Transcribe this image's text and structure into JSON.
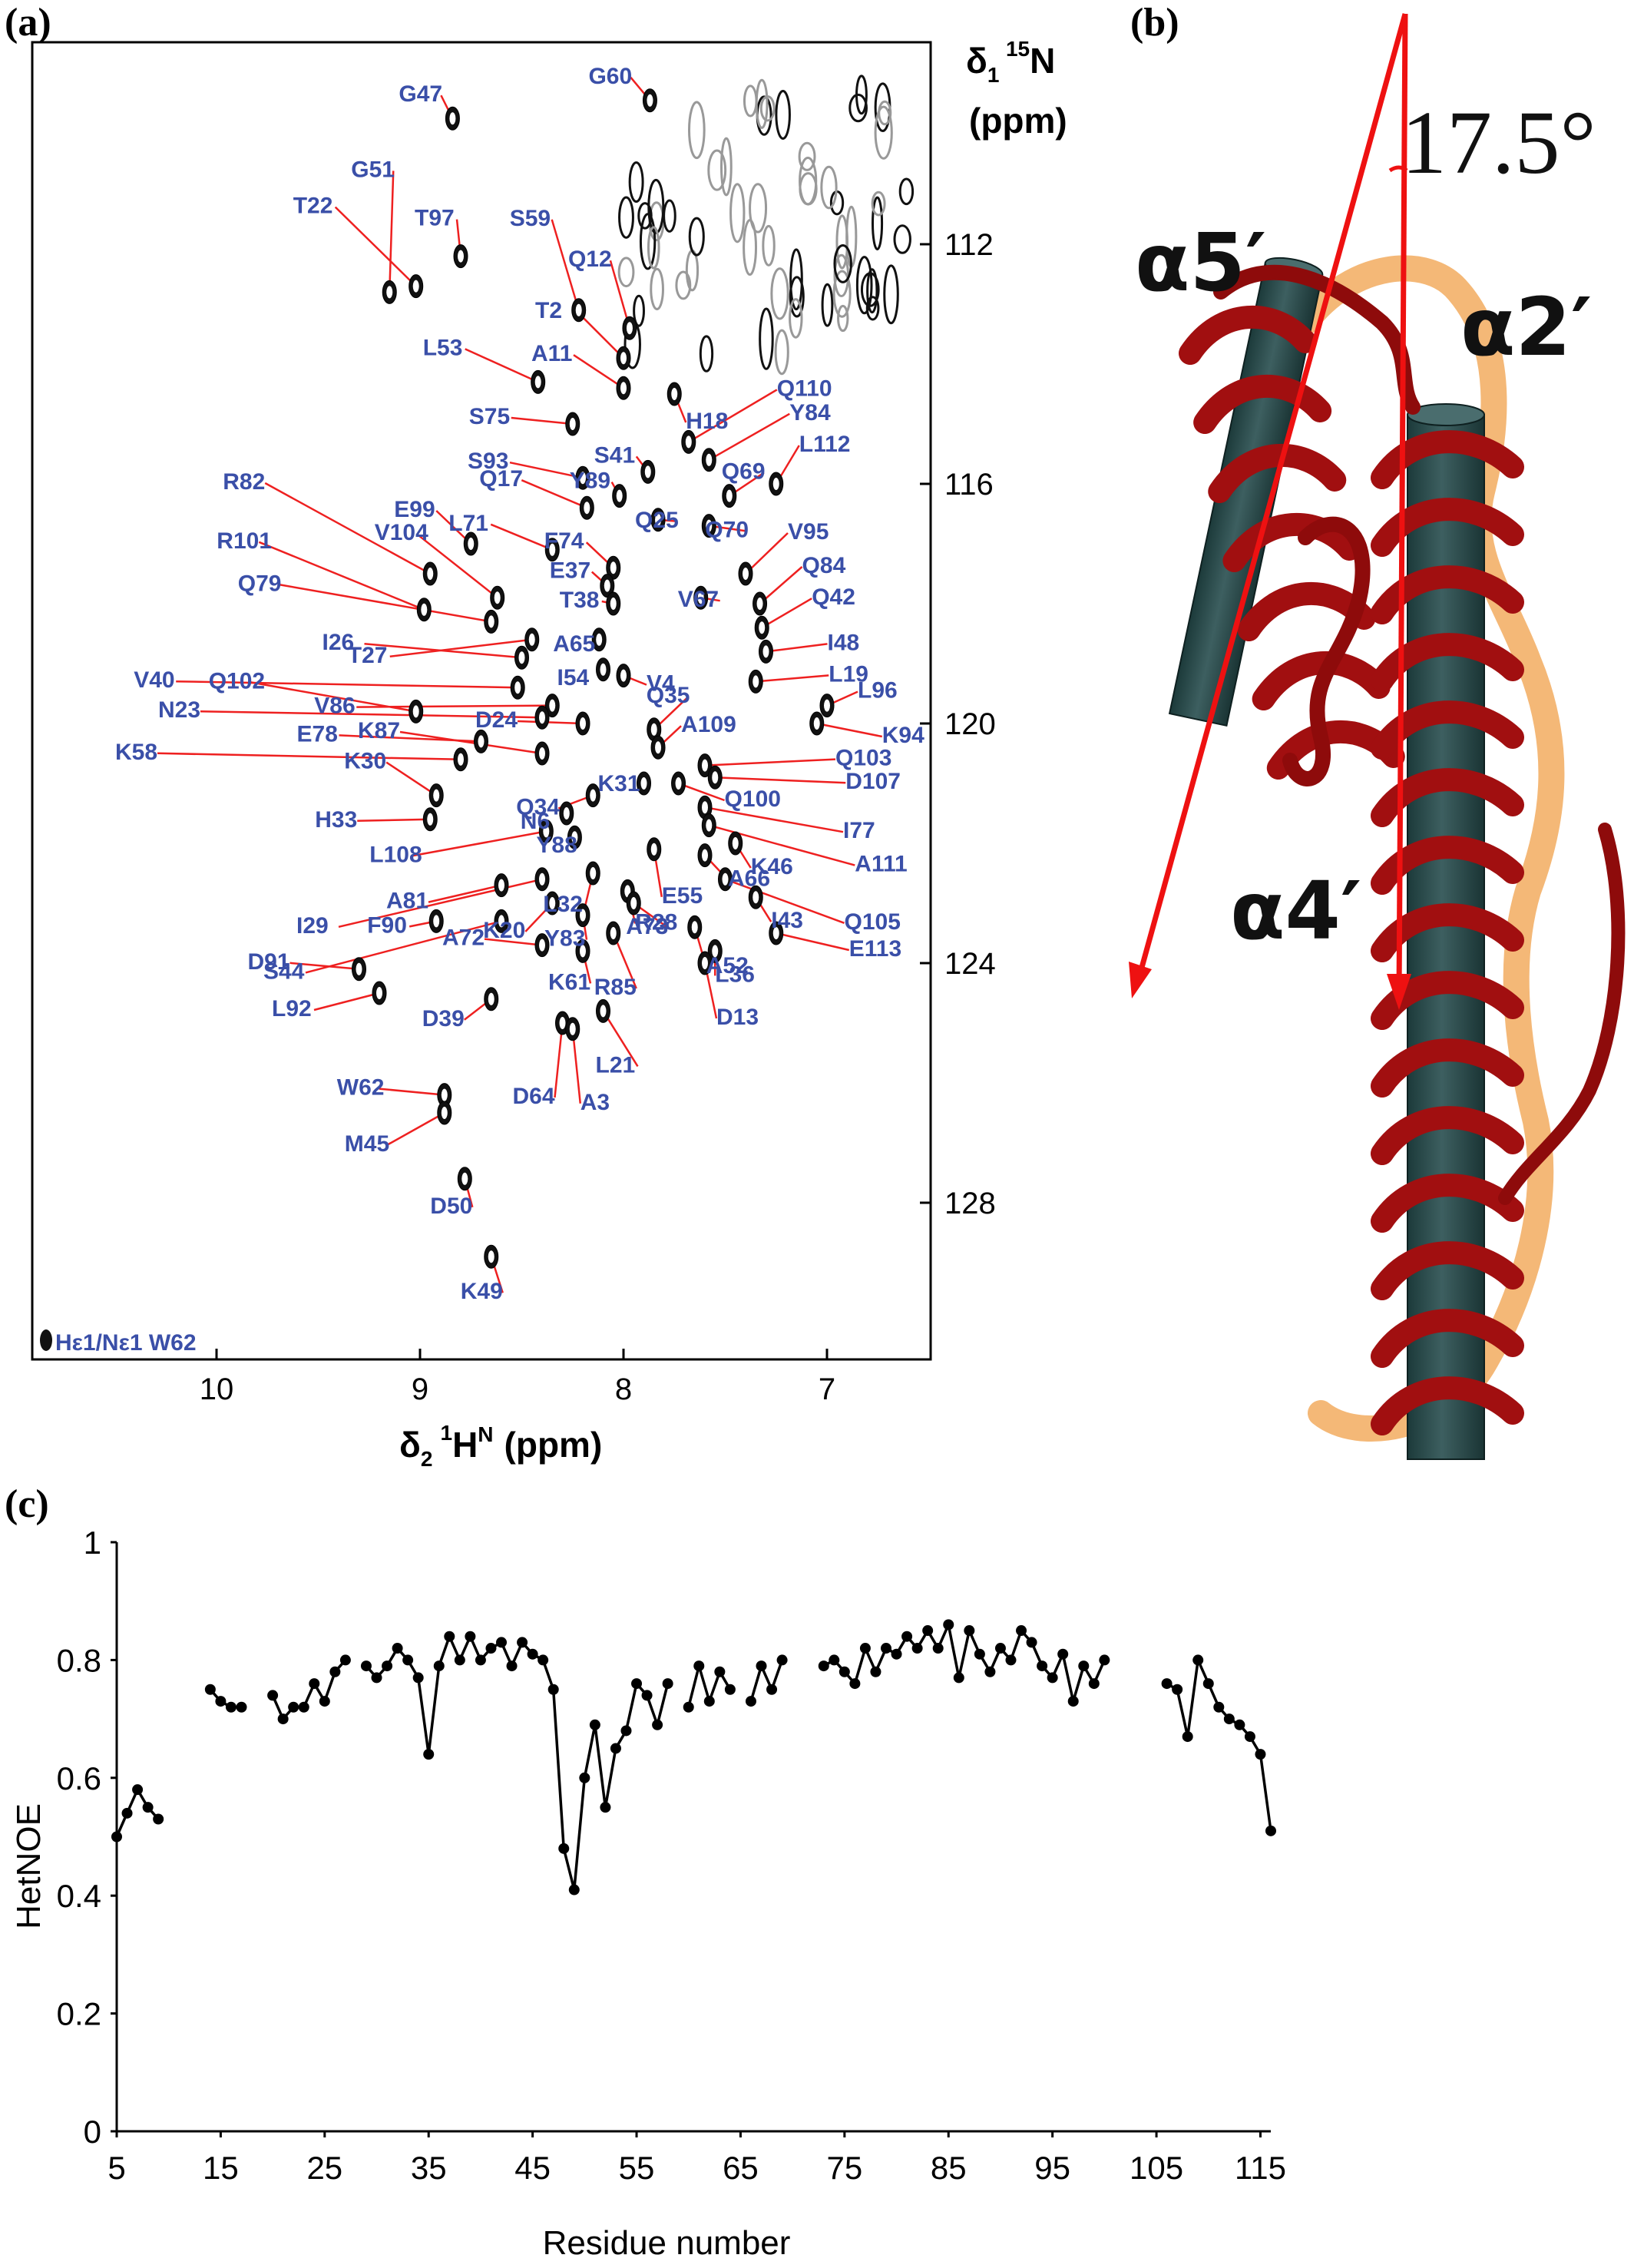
{
  "panel_a": {
    "label": "(a)",
    "y_title_1": "δ",
    "y_title_1_sub": "1",
    "y_title_1_sup": "15",
    "y_title_1_nucleus": "N",
    "y_title_2": "(ppm)",
    "x_title_main": "δ",
    "x_title_sub": "2",
    "x_title_sup": "1",
    "x_title_nucleus": "H",
    "x_title_nucleus_sup": "N",
    "x_title_unit": "(ppm)",
    "corner_note": "Hε1/Nε1 W62",
    "x_ticks": [
      "10",
      "9",
      "8",
      "7"
    ],
    "y_ticks": [
      "112",
      "116",
      "120",
      "124",
      "128"
    ]
  },
  "panel_b": {
    "label": "(b)",
    "helix_a5": "α5′",
    "helix_a2": "α2′",
    "helix_a4": "α4′",
    "angle": "17.5°"
  },
  "panel_c": {
    "label": "(c)"
  },
  "peaks": [
    {
      "name": "G47",
      "h": 8.84,
      "n": 109.9
    },
    {
      "name": "G60",
      "h": 7.87,
      "n": 109.6
    },
    {
      "name": "G51",
      "h": 9.15,
      "n": 112.8
    },
    {
      "name": "T22",
      "h": 9.02,
      "n": 112.7
    },
    {
      "name": "T97",
      "h": 8.8,
      "n": 112.2
    },
    {
      "name": "S59",
      "h": 8.22,
      "n": 113.1
    },
    {
      "name": "Q12",
      "h": 7.97,
      "n": 113.4
    },
    {
      "name": "T2",
      "h": 8.0,
      "n": 113.9
    },
    {
      "name": "L53",
      "h": 8.42,
      "n": 114.3
    },
    {
      "name": "A11",
      "h": 8.0,
      "n": 114.4
    },
    {
      "name": "H18",
      "h": 7.75,
      "n": 114.5
    },
    {
      "name": "S75",
      "h": 8.25,
      "n": 115.0
    },
    {
      "name": "Q110",
      "h": 7.68,
      "n": 115.3
    },
    {
      "name": "Y84",
      "h": 7.58,
      "n": 115.6
    },
    {
      "name": "S41",
      "h": 7.88,
      "n": 115.8
    },
    {
      "name": "Q69",
      "h": 7.48,
      "n": 116.2
    },
    {
      "name": "L112",
      "h": 7.25,
      "n": 116.0
    },
    {
      "name": "S93",
      "h": 8.2,
      "n": 115.9
    },
    {
      "name": "Y89",
      "h": 8.02,
      "n": 116.2
    },
    {
      "name": "Q17",
      "h": 8.18,
      "n": 116.4
    },
    {
      "name": "Q70",
      "h": 7.58,
      "n": 116.7
    },
    {
      "name": "Q25",
      "h": 7.83,
      "n": 116.6
    },
    {
      "name": "L71",
      "h": 8.35,
      "n": 117.1
    },
    {
      "name": "F74",
      "h": 8.05,
      "n": 117.4
    },
    {
      "name": "E99",
      "h": 8.75,
      "n": 117.0
    },
    {
      "name": "V95",
      "h": 7.4,
      "n": 117.5
    },
    {
      "name": "V67",
      "h": 7.62,
      "n": 117.9
    },
    {
      "name": "E37",
      "h": 8.08,
      "n": 117.7
    },
    {
      "name": "V104",
      "h": 8.62,
      "n": 117.9
    },
    {
      "name": "R82",
      "h": 8.95,
      "n": 117.5
    },
    {
      "name": "Q84",
      "h": 7.33,
      "n": 118.0
    },
    {
      "name": "T38",
      "h": 8.05,
      "n": 118.0
    },
    {
      "name": "Q42",
      "h": 7.32,
      "n": 118.4
    },
    {
      "name": "R101",
      "h": 8.98,
      "n": 118.1
    },
    {
      "name": "A65",
      "h": 8.12,
      "n": 118.6
    },
    {
      "name": "I48",
      "h": 7.3,
      "n": 118.8
    },
    {
      "name": "Q79",
      "h": 8.65,
      "n": 118.3
    },
    {
      "name": "T27",
      "h": 8.45,
      "n": 118.6
    },
    {
      "name": "I26",
      "h": 8.5,
      "n": 118.9
    },
    {
      "name": "I54",
      "h": 8.1,
      "n": 119.1
    },
    {
      "name": "V4",
      "h": 8.0,
      "n": 119.2
    },
    {
      "name": "L19",
      "h": 7.35,
      "n": 119.3
    },
    {
      "name": "V40",
      "h": 8.52,
      "n": 119.4
    },
    {
      "name": "V86",
      "h": 8.35,
      "n": 119.7
    },
    {
      "name": "L96",
      "h": 7.0,
      "n": 119.7
    },
    {
      "name": "Q102",
      "h": 9.02,
      "n": 119.8
    },
    {
      "name": "N23",
      "h": 8.4,
      "n": 119.9
    },
    {
      "name": "K94",
      "h": 7.05,
      "n": 120.0
    },
    {
      "name": "D24",
      "h": 8.2,
      "n": 120.0
    },
    {
      "name": "Q35",
      "h": 7.85,
      "n": 120.1
    },
    {
      "name": "A109",
      "h": 7.83,
      "n": 120.4
    },
    {
      "name": "E78",
      "h": 8.7,
      "n": 120.3
    },
    {
      "name": "K87",
      "h": 8.4,
      "n": 120.5
    },
    {
      "name": "Q103",
      "h": 7.6,
      "n": 120.7
    },
    {
      "name": "K58",
      "h": 8.8,
      "n": 120.6
    },
    {
      "name": "D107",
      "h": 7.55,
      "n": 120.9
    },
    {
      "name": "Q100",
      "h": 7.73,
      "n": 121.0
    },
    {
      "name": "K31",
      "h": 7.9,
      "n": 121.0
    },
    {
      "name": "Q34",
      "h": 8.15,
      "n": 121.2
    },
    {
      "name": "K30",
      "h": 8.92,
      "n": 121.2
    },
    {
      "name": "I77",
      "h": 7.6,
      "n": 121.4
    },
    {
      "name": "N6",
      "h": 8.28,
      "n": 121.5
    },
    {
      "name": "H33",
      "h": 8.95,
      "n": 121.6
    },
    {
      "name": "A111",
      "h": 7.58,
      "n": 121.7
    },
    {
      "name": "Y88",
      "h": 8.24,
      "n": 121.9
    },
    {
      "name": "K46",
      "h": 7.45,
      "n": 122.0
    },
    {
      "name": "L108",
      "h": 8.38,
      "n": 121.8
    },
    {
      "name": "E55",
      "h": 7.85,
      "n": 122.1
    },
    {
      "name": "A66",
      "h": 7.6,
      "n": 122.2
    },
    {
      "name": "L32",
      "h": 8.15,
      "n": 122.5
    },
    {
      "name": "I29",
      "h": 8.4,
      "n": 122.6
    },
    {
      "name": "A81",
      "h": 8.6,
      "n": 122.7
    },
    {
      "name": "Q105",
      "h": 7.5,
      "n": 122.6
    },
    {
      "name": "R28",
      "h": 7.98,
      "n": 122.8
    },
    {
      "name": "I43",
      "h": 7.35,
      "n": 122.9
    },
    {
      "name": "A73",
      "h": 7.95,
      "n": 123.0
    },
    {
      "name": "K20",
      "h": 8.35,
      "n": 123.0
    },
    {
      "name": "Y83",
      "h": 8.2,
      "n": 123.2
    },
    {
      "name": "S44",
      "h": 8.6,
      "n": 123.3
    },
    {
      "name": "F90",
      "h": 8.92,
      "n": 123.3
    },
    {
      "name": "A52",
      "h": 7.65,
      "n": 123.4
    },
    {
      "name": "R85",
      "h": 8.05,
      "n": 123.5
    },
    {
      "name": "E113",
      "h": 7.25,
      "n": 123.5
    },
    {
      "name": "A72",
      "h": 8.4,
      "n": 123.7
    },
    {
      "name": "K61",
      "h": 8.2,
      "n": 123.8
    },
    {
      "name": "L36",
      "h": 7.55,
      "n": 123.8
    },
    {
      "name": "D13",
      "h": 7.6,
      "n": 124.0
    },
    {
      "name": "D91",
      "h": 9.3,
      "n": 124.1
    },
    {
      "name": "L92",
      "h": 9.2,
      "n": 124.5
    },
    {
      "name": "D39",
      "h": 8.65,
      "n": 124.6
    },
    {
      "name": "L21",
      "h": 8.1,
      "n": 124.8
    },
    {
      "name": "D64",
      "h": 8.3,
      "n": 125.0
    },
    {
      "name": "A3",
      "h": 8.25,
      "n": 125.1
    },
    {
      "name": "W62",
      "h": 8.88,
      "n": 126.2
    },
    {
      "name": "M45",
      "h": 8.88,
      "n": 126.5
    },
    {
      "name": "D50",
      "h": 8.78,
      "n": 127.6
    },
    {
      "name": "K49",
      "h": 8.65,
      "n": 128.9
    }
  ],
  "chart_data": {
    "type": "line",
    "xlabel": "Residue number",
    "ylabel": "HetNOE",
    "xlim": [
      5,
      116
    ],
    "ylim": [
      0,
      1
    ],
    "x_ticks": [
      5,
      15,
      25,
      35,
      45,
      55,
      65,
      75,
      85,
      95,
      105,
      115
    ],
    "y_ticks": [
      0,
      0.2,
      0.4,
      0.6,
      0.8,
      1
    ],
    "segments": [
      [
        [
          5,
          0.5
        ],
        [
          6,
          0.54
        ],
        [
          7,
          0.58
        ],
        [
          8,
          0.55
        ],
        [
          9,
          0.53
        ]
      ],
      [
        [
          14,
          0.75
        ],
        [
          15,
          0.73
        ],
        [
          16,
          0.72
        ],
        [
          17,
          0.72
        ]
      ],
      [
        [
          20,
          0.74
        ],
        [
          21,
          0.7
        ],
        [
          22,
          0.72
        ],
        [
          23,
          0.72
        ],
        [
          24,
          0.76
        ],
        [
          25,
          0.73
        ],
        [
          26,
          0.78
        ],
        [
          27,
          0.8
        ]
      ],
      [
        [
          29,
          0.79
        ],
        [
          30,
          0.77
        ],
        [
          31,
          0.79
        ],
        [
          32,
          0.82
        ],
        [
          33,
          0.8
        ],
        [
          34,
          0.77
        ],
        [
          35,
          0.64
        ],
        [
          36,
          0.79
        ],
        [
          37,
          0.84
        ],
        [
          38,
          0.8
        ],
        [
          39,
          0.84
        ],
        [
          40,
          0.8
        ],
        [
          41,
          0.82
        ],
        [
          42,
          0.83
        ],
        [
          43,
          0.79
        ],
        [
          44,
          0.83
        ],
        [
          45,
          0.81
        ],
        [
          46,
          0.8
        ],
        [
          47,
          0.75
        ],
        [
          48,
          0.48
        ],
        [
          49,
          0.41
        ],
        [
          50,
          0.6
        ],
        [
          51,
          0.69
        ],
        [
          52,
          0.55
        ],
        [
          53,
          0.65
        ],
        [
          54,
          0.68
        ],
        [
          55,
          0.76
        ],
        [
          56,
          0.74
        ],
        [
          57,
          0.69
        ],
        [
          58,
          0.76
        ]
      ],
      [
        [
          60,
          0.72
        ],
        [
          61,
          0.79
        ],
        [
          62,
          0.73
        ],
        [
          63,
          0.78
        ],
        [
          64,
          0.75
        ]
      ],
      [
        [
          66,
          0.73
        ],
        [
          67,
          0.79
        ],
        [
          68,
          0.75
        ],
        [
          69,
          0.8
        ]
      ],
      [
        [
          73,
          0.79
        ],
        [
          74,
          0.8
        ],
        [
          75,
          0.78
        ],
        [
          76,
          0.76
        ],
        [
          77,
          0.82
        ],
        [
          78,
          0.78
        ],
        [
          79,
          0.82
        ],
        [
          80,
          0.81
        ],
        [
          81,
          0.84
        ],
        [
          82,
          0.82
        ],
        [
          83,
          0.85
        ],
        [
          84,
          0.82
        ],
        [
          85,
          0.86
        ],
        [
          86,
          0.77
        ],
        [
          87,
          0.85
        ],
        [
          88,
          0.81
        ],
        [
          89,
          0.78
        ],
        [
          90,
          0.82
        ],
        [
          91,
          0.8
        ],
        [
          92,
          0.85
        ],
        [
          93,
          0.83
        ],
        [
          94,
          0.79
        ],
        [
          95,
          0.77
        ],
        [
          96,
          0.81
        ],
        [
          97,
          0.73
        ],
        [
          98,
          0.79
        ],
        [
          99,
          0.76
        ],
        [
          100,
          0.8
        ]
      ],
      [
        [
          106,
          0.76
        ],
        [
          107,
          0.75
        ],
        [
          108,
          0.67
        ],
        [
          109,
          0.8
        ],
        [
          110,
          0.76
        ],
        [
          111,
          0.72
        ],
        [
          112,
          0.7
        ],
        [
          113,
          0.69
        ],
        [
          114,
          0.67
        ],
        [
          115,
          0.64
        ],
        [
          116,
          0.51
        ]
      ]
    ]
  }
}
